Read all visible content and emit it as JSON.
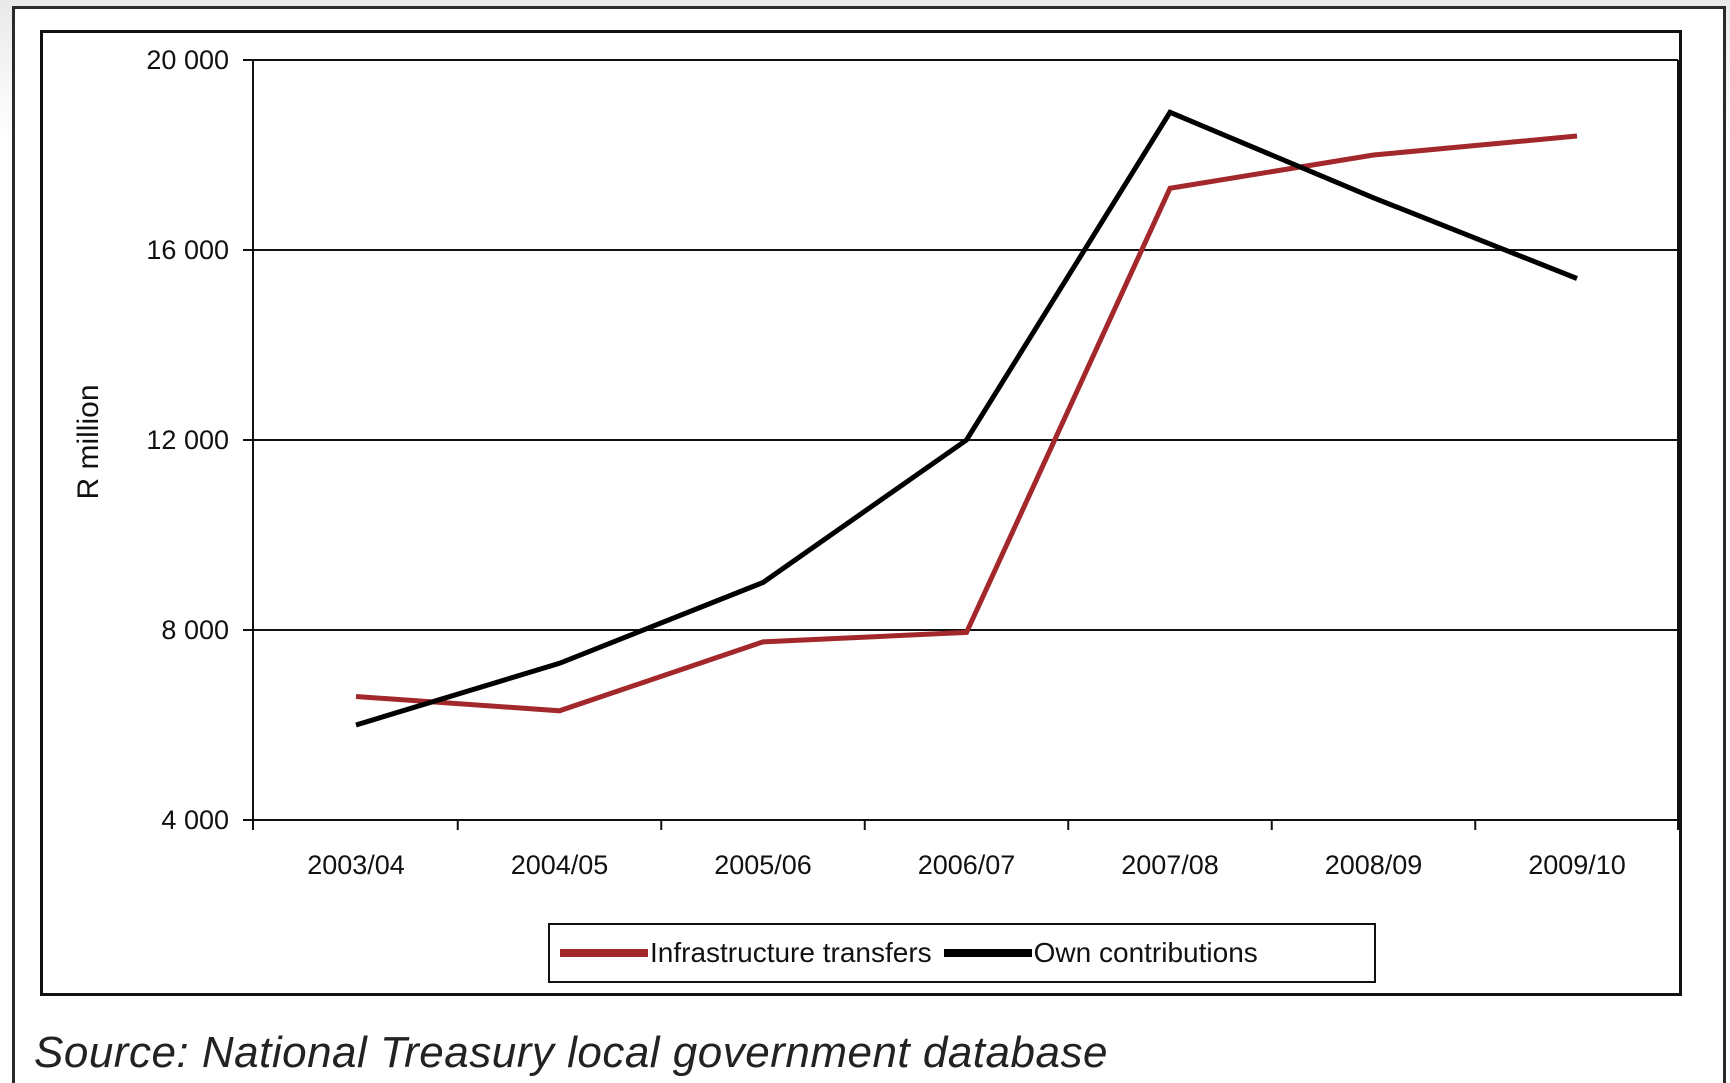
{
  "chart_data": {
    "type": "line",
    "title": "",
    "xlabel": "",
    "ylabel": "R million",
    "categories": [
      "2003/04",
      "2004/05",
      "2005/06",
      "2006/07",
      "2007/08",
      "2008/09",
      "2009/10"
    ],
    "y_ticks": [
      "4 000",
      "8 000",
      "12 000",
      "16 000",
      "20 000"
    ],
    "y_tick_values": [
      4000,
      8000,
      12000,
      16000,
      20000
    ],
    "ylim": [
      4000,
      20000
    ],
    "grid": "horizontal",
    "legend_position": "bottom",
    "series": [
      {
        "name": "Infrastructure transfers",
        "color": "#a3282c",
        "values": [
          6600,
          6300,
          7750,
          7950,
          17300,
          18000,
          18400
        ]
      },
      {
        "name": "Own contributions",
        "color": "#000000",
        "values": [
          6000,
          7300,
          9000,
          12000,
          18900,
          17100,
          15400
        ]
      }
    ]
  },
  "source_note": "Source: National Treasury local government database"
}
